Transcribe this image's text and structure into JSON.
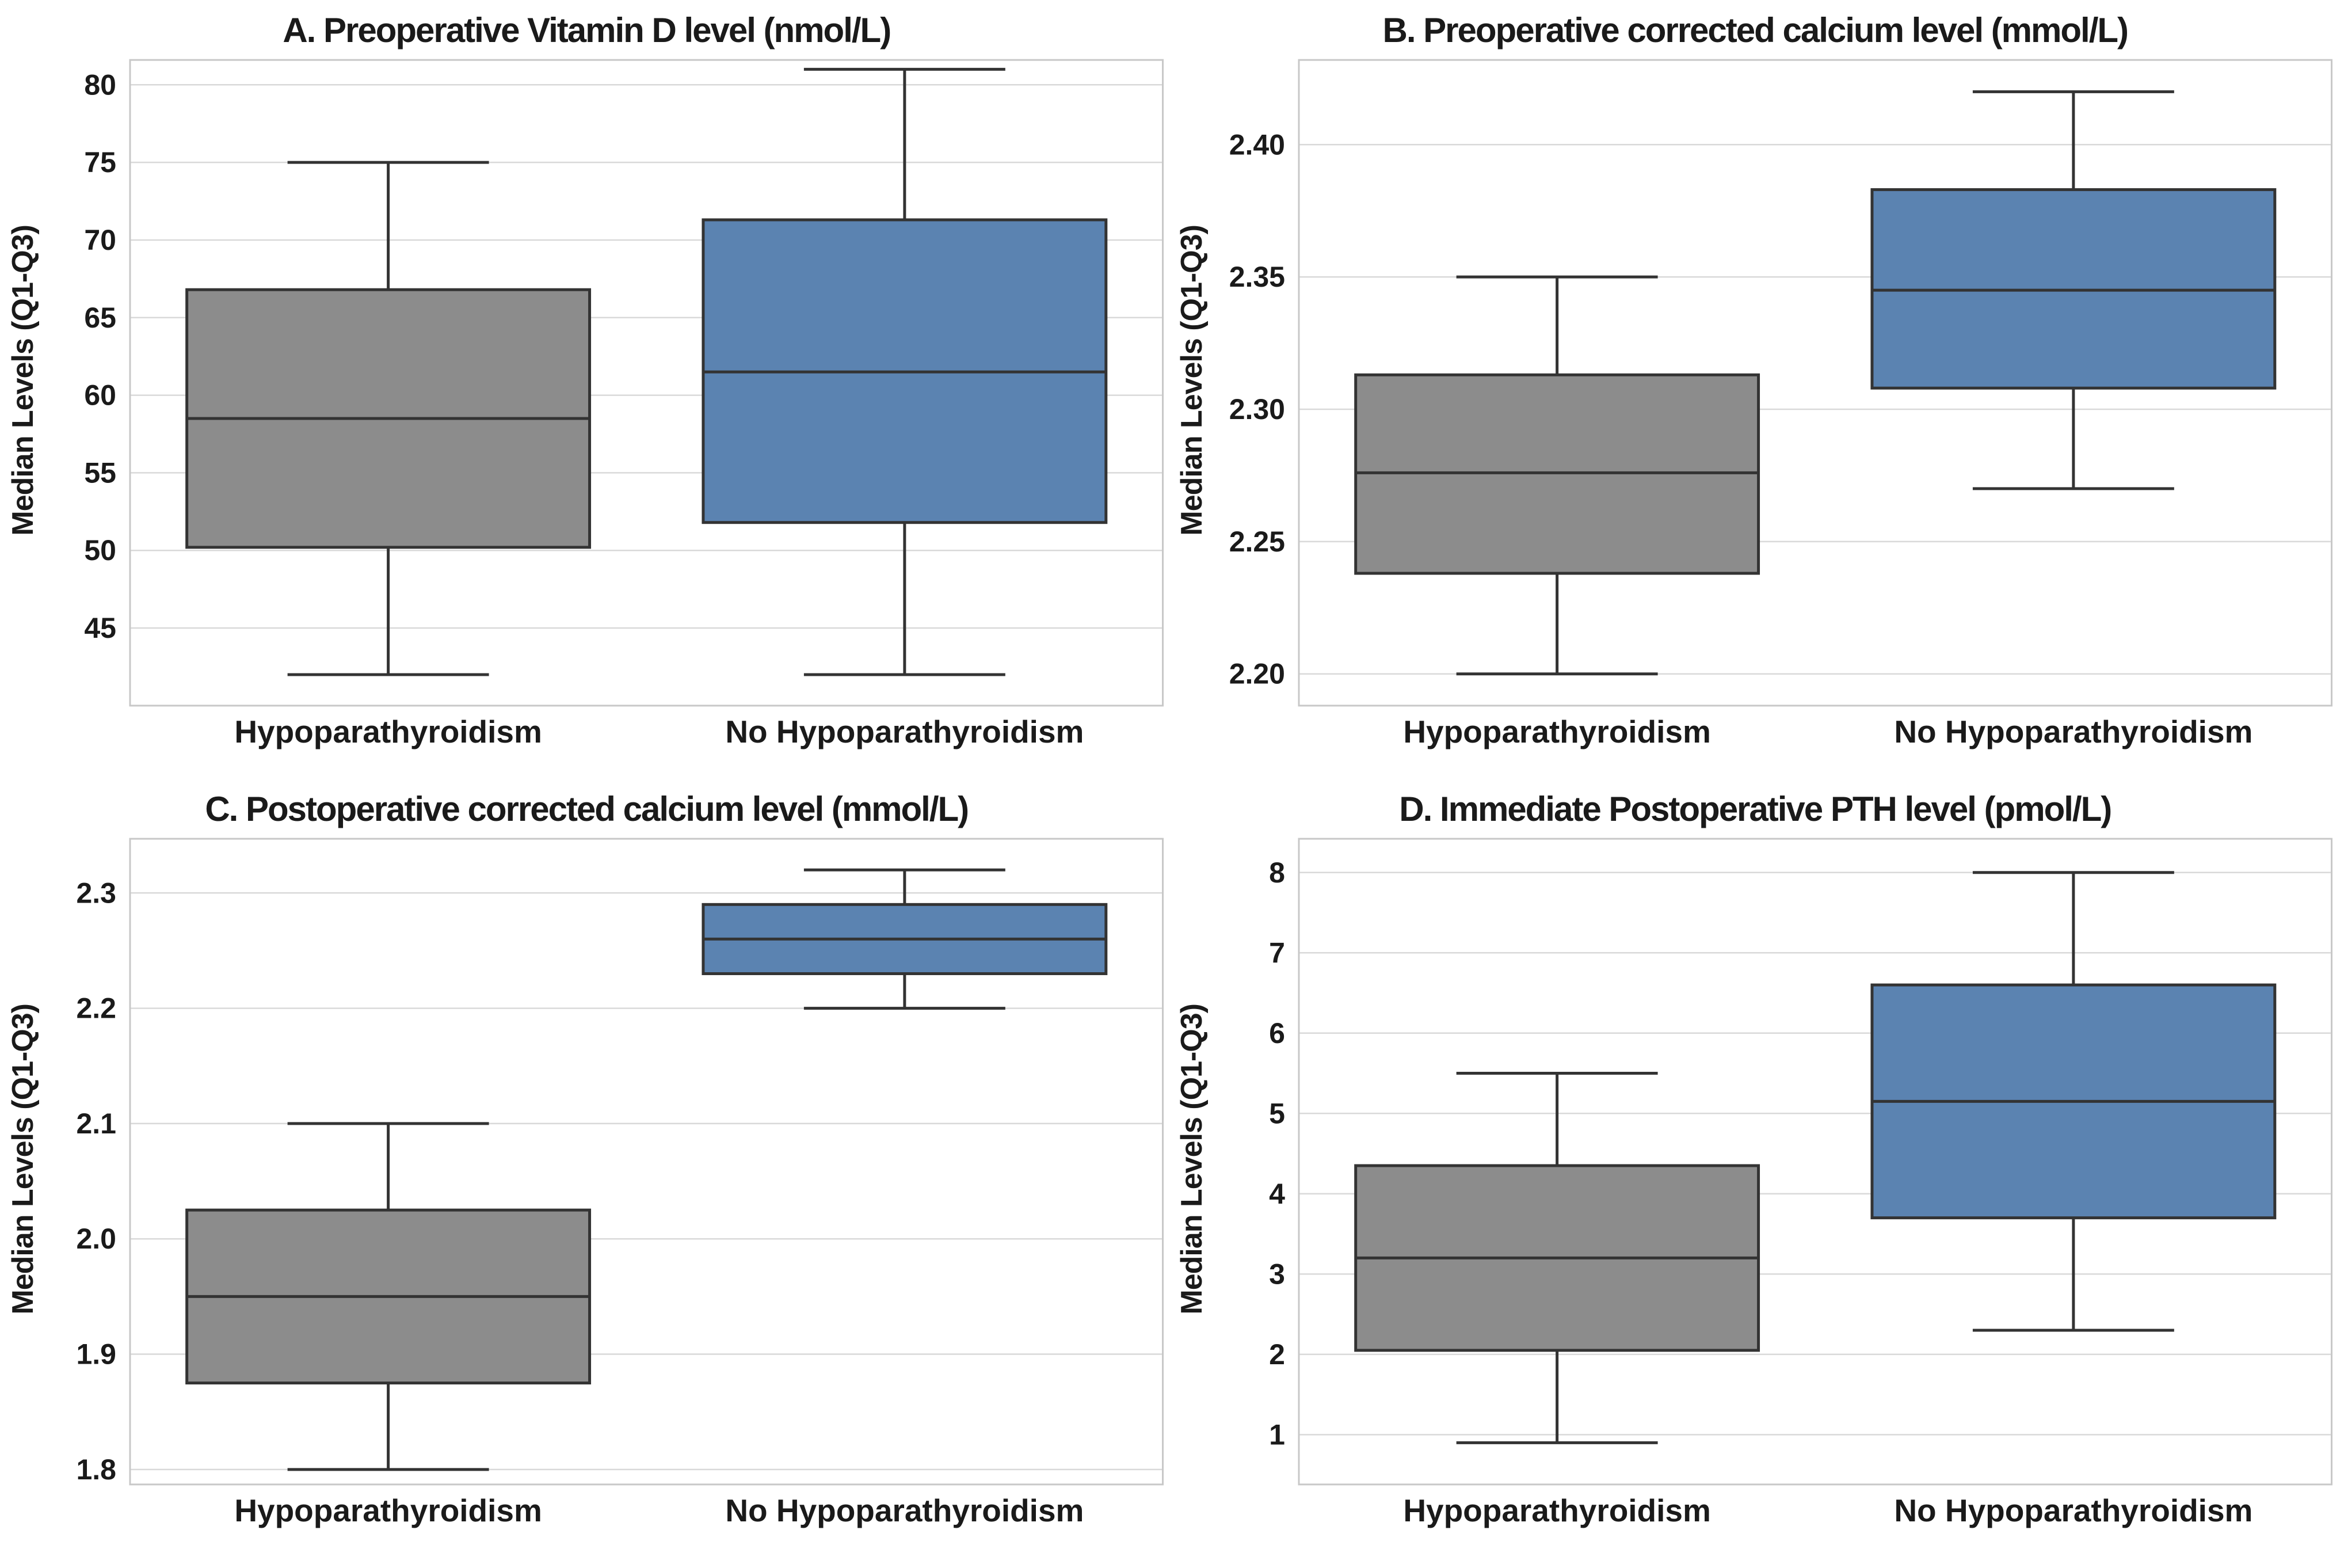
{
  "figure": {
    "ylabel": "Median Levels (Q1-Q3)",
    "categories": [
      "Hypoparathyroidism",
      "No Hypoparathyroidism"
    ]
  },
  "styles": {
    "background": "#ffffff",
    "gray_fill": "#8C8C8C",
    "blue_fill": "#5B83B1",
    "edge_color": "#333333",
    "grid_color": "#d9d9d9",
    "border_color": "#c8c8c8",
    "text_color": "#1a1a1a"
  },
  "chart_data": [
    {
      "type": "box",
      "title": "A. Preoperative Vitamin D level (nmol/L)",
      "ylabel": "Median Levels (Q1-Q3)",
      "categories": [
        "Hypoparathyroidism",
        "No Hypoparathyroidism"
      ],
      "ylim": [
        40.0,
        81.6
      ],
      "yticks": [
        45,
        50,
        55,
        60,
        65,
        70,
        75,
        80
      ],
      "ytick_labels": [
        "45",
        "50",
        "55",
        "60",
        "65",
        "70",
        "75",
        "80"
      ],
      "grid": true,
      "series": [
        {
          "name": "Hypoparathyroidism",
          "color": "#8C8C8C",
          "min": 42,
          "q1": 50.2,
          "median": 58.5,
          "q3": 66.8,
          "max": 75
        },
        {
          "name": "No Hypoparathyroidism",
          "color": "#5B83B1",
          "min": 42,
          "q1": 51.8,
          "median": 61.5,
          "q3": 71.3,
          "max": 81
        }
      ]
    },
    {
      "type": "box",
      "title": "B. Preoperative corrected calcium level (mmol/L)",
      "ylabel": "Median Levels (Q1-Q3)",
      "categories": [
        "Hypoparathyroidism",
        "No Hypoparathyroidism"
      ],
      "ylim": [
        2.188,
        2.432
      ],
      "yticks": [
        2.2,
        2.25,
        2.3,
        2.35,
        2.4
      ],
      "ytick_labels": [
        "2.20",
        "2.25",
        "2.30",
        "2.35",
        "2.40"
      ],
      "grid": true,
      "series": [
        {
          "name": "Hypoparathyroidism",
          "color": "#8C8C8C",
          "min": 2.2,
          "q1": 2.238,
          "median": 2.276,
          "q3": 2.313,
          "max": 2.35
        },
        {
          "name": "No Hypoparathyroidism",
          "color": "#5B83B1",
          "min": 2.27,
          "q1": 2.308,
          "median": 2.345,
          "q3": 2.383,
          "max": 2.42
        }
      ]
    },
    {
      "type": "box",
      "title": "C. Postoperative corrected calcium level (mmol/L)",
      "ylabel": "Median Levels (Q1-Q3)",
      "categories": [
        "Hypoparathyroidism",
        "No Hypoparathyroidism"
      ],
      "ylim": [
        1.787,
        2.347
      ],
      "yticks": [
        1.8,
        1.9,
        2.0,
        2.1,
        2.2,
        2.3
      ],
      "ytick_labels": [
        "1.8",
        "1.9",
        "2.0",
        "2.1",
        "2.2",
        "2.3"
      ],
      "grid": true,
      "series": [
        {
          "name": "Hypoparathyroidism",
          "color": "#8C8C8C",
          "min": 1.8,
          "q1": 1.875,
          "median": 1.95,
          "q3": 2.025,
          "max": 2.1
        },
        {
          "name": "No Hypoparathyroidism",
          "color": "#5B83B1",
          "min": 2.2,
          "q1": 2.23,
          "median": 2.26,
          "q3": 2.29,
          "max": 2.32
        }
      ]
    },
    {
      "type": "box",
      "title": "D. Immediate Postoperative PTH level (pmol/L)",
      "ylabel": "Median Levels (Q1-Q3)",
      "categories": [
        "Hypoparathyroidism",
        "No Hypoparathyroidism"
      ],
      "ylim": [
        0.38,
        8.42
      ],
      "yticks": [
        1,
        2,
        3,
        4,
        5,
        6,
        7,
        8
      ],
      "ytick_labels": [
        "1",
        "2",
        "3",
        "4",
        "5",
        "6",
        "7",
        "8"
      ],
      "grid": true,
      "series": [
        {
          "name": "Hypoparathyroidism",
          "color": "#8C8C8C",
          "min": 0.9,
          "q1": 2.05,
          "median": 3.2,
          "q3": 4.35,
          "max": 5.5
        },
        {
          "name": "No Hypoparathyroidism",
          "color": "#5B83B1",
          "min": 2.3,
          "q1": 3.7,
          "median": 5.15,
          "q3": 6.6,
          "max": 8.0
        }
      ]
    }
  ]
}
